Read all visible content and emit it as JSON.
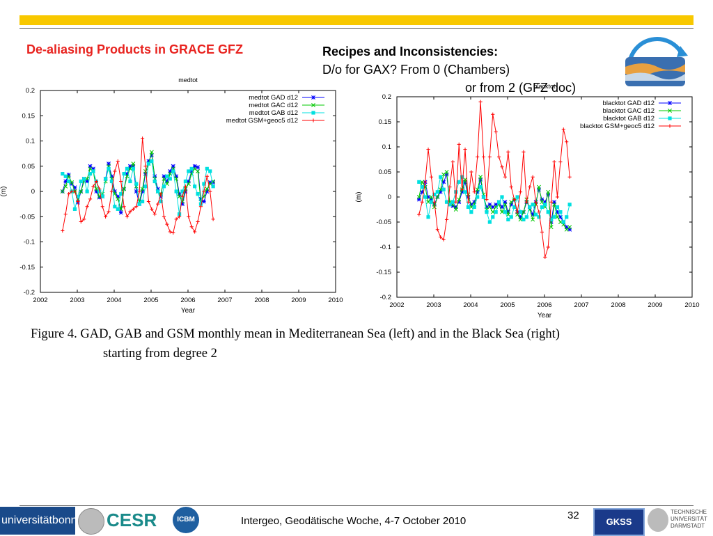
{
  "slide": {
    "title": "De-aliasing Products in GRACE GFZ",
    "recipes_heading": "Recipes and Inconsistencies:",
    "recipes_line1": "D/o for GAX? From 0 (Chambers)",
    "recipes_line2": "or from 2 (GFZ doc)"
  },
  "caption": {
    "line1": "Figure 4. GAD, GAB and GSM monthly mean in Mediterranean Sea (left) and in the Black Sea (right)",
    "line2": "starting from degree 2"
  },
  "footer": {
    "text": "Intergeo, Geodätische Woche, 4-7 October 2010",
    "page_number": "32",
    "logos": {
      "bonn": "universitätbonn",
      "cesr": "CESR",
      "icbm": "ICBM",
      "gkss": "GKSS",
      "tud": [
        "TECHNISCHE",
        "UNIVERSITÄT",
        "DARMSTADT"
      ]
    }
  },
  "colors": {
    "accent_bar": "#f8c800",
    "title": "#e8231f",
    "gad": "#0000ff",
    "gac": "#00c800",
    "gab": "#00e0e0",
    "gsm": "#ff0000"
  },
  "chart_data": [
    {
      "type": "line",
      "title": "medtot",
      "xlabel": "Year",
      "ylabel": "(m)",
      "xlim": [
        2002,
        2010
      ],
      "ylim": [
        -0.2,
        0.2
      ],
      "xticks": [
        "2002",
        "2003",
        "2004",
        "2005",
        "2006",
        "2007",
        "2008",
        "2009",
        "2010"
      ],
      "yticks": [
        "0.2",
        "0.15",
        "0.1",
        "0.05",
        "0",
        "-0.05",
        "-0.1",
        "-0.15",
        "-0.2"
      ],
      "legend_position": "top-right",
      "series": [
        {
          "name": "medtot GAD d12",
          "color": "#0000ff",
          "marker": "star",
          "x_start": 2002.6,
          "x_step": 0.0833,
          "values": [
            0.0,
            0.02,
            0.033,
            0.015,
            0.008,
            -0.022,
            0.0,
            0.025,
            0.02,
            0.05,
            0.045,
            0.0,
            -0.012,
            -0.01,
            0.025,
            0.055,
            0.03,
            0.0,
            -0.01,
            -0.042,
            0.005,
            0.035,
            0.05,
            0.05,
            0.0,
            -0.025,
            0.0,
            0.035,
            0.06,
            0.072,
            0.03,
            0.005,
            -0.01,
            0.03,
            0.02,
            0.04,
            0.05,
            0.03,
            -0.005,
            -0.025,
            0.0,
            0.02,
            0.04,
            0.05,
            0.048,
            -0.015,
            -0.02,
            0.0,
            0.018,
            0.018
          ]
        },
        {
          "name": "medtot GAC d12",
          "color": "#00c800",
          "marker": "x",
          "x_start": 2002.6,
          "x_step": 0.0833,
          "values": [
            0.0,
            0.01,
            0.03,
            0.018,
            0.0,
            -0.015,
            0.0,
            0.02,
            0.025,
            0.045,
            0.04,
            0.005,
            -0.01,
            -0.005,
            0.02,
            0.05,
            0.025,
            -0.005,
            -0.015,
            -0.035,
            0.005,
            0.03,
            0.045,
            0.055,
            0.01,
            -0.02,
            0.005,
            0.04,
            0.055,
            0.078,
            0.025,
            0.0,
            -0.005,
            0.025,
            0.015,
            0.035,
            0.045,
            0.025,
            -0.01,
            -0.02,
            0.005,
            0.015,
            0.035,
            0.045,
            0.04,
            -0.02,
            -0.01,
            0.005,
            0.015,
            0.02
          ]
        },
        {
          "name": "medtot GAB d12",
          "color": "#00e0e0",
          "marker": "square",
          "x_start": 2002.6,
          "x_step": 0.0833,
          "values": [
            0.035,
            0.03,
            0.02,
            0.0,
            -0.035,
            -0.01,
            0.02,
            0.025,
            0.0,
            0.035,
            0.04,
            0.02,
            0.0,
            -0.01,
            0.025,
            0.045,
            0.02,
            -0.03,
            -0.035,
            -0.005,
            0.035,
            0.045,
            0.02,
            0.045,
            0.015,
            -0.025,
            -0.02,
            0.01,
            0.055,
            0.06,
            0.02,
            0.0,
            -0.02,
            0.01,
            0.03,
            0.025,
            0.04,
            0.0,
            -0.045,
            0.0,
            0.02,
            0.04,
            0.045,
            0.01,
            -0.005,
            -0.025,
            0.015,
            0.045,
            0.04,
            0.01
          ]
        },
        {
          "name": "medtot GSM+geoc5 d12",
          "color": "#ff0000",
          "marker": "plus",
          "x_start": 2002.6,
          "x_step": 0.0833,
          "values": [
            -0.078,
            -0.045,
            -0.005,
            0.0,
            0.0,
            -0.02,
            -0.06,
            -0.055,
            -0.03,
            -0.015,
            0.01,
            0.02,
            0.005,
            -0.03,
            -0.05,
            -0.04,
            0.0,
            0.04,
            0.06,
            0.02,
            -0.03,
            -0.05,
            -0.04,
            -0.035,
            -0.03,
            0.0,
            0.105,
            0.05,
            -0.02,
            -0.035,
            -0.045,
            -0.025,
            -0.005,
            -0.05,
            -0.065,
            -0.08,
            -0.082,
            -0.055,
            -0.05,
            -0.01,
            0.01,
            -0.05,
            -0.07,
            -0.08,
            -0.06,
            -0.03,
            0.0,
            0.03,
            0.0,
            -0.055
          ]
        }
      ]
    },
    {
      "type": "line",
      "title": "blacktot",
      "xlabel": "Year",
      "ylabel": "(m)",
      "xlim": [
        2002,
        2010
      ],
      "ylim": [
        -0.2,
        0.2
      ],
      "xticks": [
        "2002",
        "2003",
        "2004",
        "2005",
        "2006",
        "2007",
        "2008",
        "2009",
        "2010"
      ],
      "yticks": [
        "0.2",
        "0.15",
        "0.1",
        "0.05",
        "0",
        "-0.05",
        "-0.1",
        "-0.15",
        "-0.2"
      ],
      "legend_position": "top-right",
      "series": [
        {
          "name": "blacktot GAD d12",
          "color": "#0000ff",
          "marker": "star",
          "x_start": 2002.6,
          "x_step": 0.0833,
          "values": [
            -0.005,
            0.01,
            0.03,
            0.0,
            -0.005,
            -0.015,
            0.0,
            0.01,
            0.03,
            0.045,
            -0.015,
            -0.018,
            -0.02,
            -0.01,
            0.01,
            0.03,
            0.0,
            -0.015,
            -0.01,
            0.01,
            0.035,
            0.0,
            -0.02,
            -0.015,
            -0.02,
            -0.015,
            -0.01,
            -0.02,
            -0.01,
            -0.03,
            -0.015,
            -0.005,
            -0.03,
            -0.04,
            -0.03,
            -0.01,
            -0.02,
            -0.035,
            -0.01,
            0.015,
            -0.005,
            -0.01,
            0.005,
            -0.05,
            -0.01,
            -0.03,
            -0.04,
            -0.05,
            -0.06,
            -0.065
          ]
        },
        {
          "name": "blacktot GAC d12",
          "color": "#00c800",
          "marker": "x",
          "x_start": 2002.6,
          "x_step": 0.0833,
          "values": [
            0.0,
            0.03,
            0.02,
            -0.01,
            0.0,
            -0.02,
            0.0,
            0.015,
            0.045,
            0.05,
            -0.01,
            -0.015,
            -0.025,
            -0.005,
            0.015,
            0.035,
            0.005,
            -0.02,
            -0.015,
            0.015,
            0.04,
            0.005,
            -0.025,
            -0.02,
            -0.03,
            -0.02,
            -0.015,
            -0.03,
            -0.015,
            -0.035,
            -0.01,
            -0.005,
            -0.035,
            -0.045,
            -0.03,
            -0.005,
            -0.025,
            -0.045,
            -0.015,
            0.02,
            -0.01,
            -0.02,
            0.01,
            -0.06,
            -0.015,
            -0.04,
            -0.05,
            -0.055,
            -0.065,
            -0.06
          ]
        },
        {
          "name": "blacktot GAB d12",
          "color": "#00e0e0",
          "marker": "square",
          "x_start": 2002.6,
          "x_step": 0.0833,
          "values": [
            0.03,
            0.02,
            0.0,
            -0.04,
            -0.01,
            0.005,
            0.01,
            0.04,
            0.015,
            -0.01,
            -0.015,
            -0.01,
            0.01,
            0.03,
            0.04,
            0.01,
            -0.02,
            -0.03,
            -0.02,
            0.0,
            0.02,
            0.0,
            -0.03,
            -0.05,
            -0.04,
            -0.03,
            -0.01,
            0.0,
            -0.03,
            -0.045,
            -0.04,
            -0.02,
            0.0,
            -0.03,
            -0.045,
            -0.04,
            -0.02,
            -0.015,
            -0.035,
            -0.04,
            -0.02,
            -0.015,
            -0.03,
            -0.045,
            -0.04,
            -0.02,
            -0.03,
            -0.05,
            -0.04,
            -0.015
          ]
        },
        {
          "name": "blacktot GSM+geoc5 d12",
          "color": "#ff0000",
          "marker": "plus",
          "x_start": 2002.6,
          "x_step": 0.0833,
          "values": [
            -0.035,
            -0.01,
            0.03,
            0.095,
            0.04,
            -0.01,
            -0.065,
            -0.08,
            -0.085,
            -0.045,
            0.02,
            0.07,
            -0.01,
            0.105,
            0.015,
            0.095,
            -0.01,
            0.05,
            0.01,
            0.08,
            0.19,
            0.08,
            -0.005,
            0.08,
            0.165,
            0.13,
            0.08,
            0.06,
            0.04,
            0.09,
            0.02,
            -0.005,
            -0.03,
            0.01,
            0.09,
            -0.01,
            0.02,
            0.04,
            -0.01,
            -0.03,
            -0.07,
            -0.12,
            -0.1,
            -0.01,
            0.07,
            0.0,
            0.07,
            0.135,
            0.11,
            0.04
          ]
        }
      ]
    }
  ]
}
